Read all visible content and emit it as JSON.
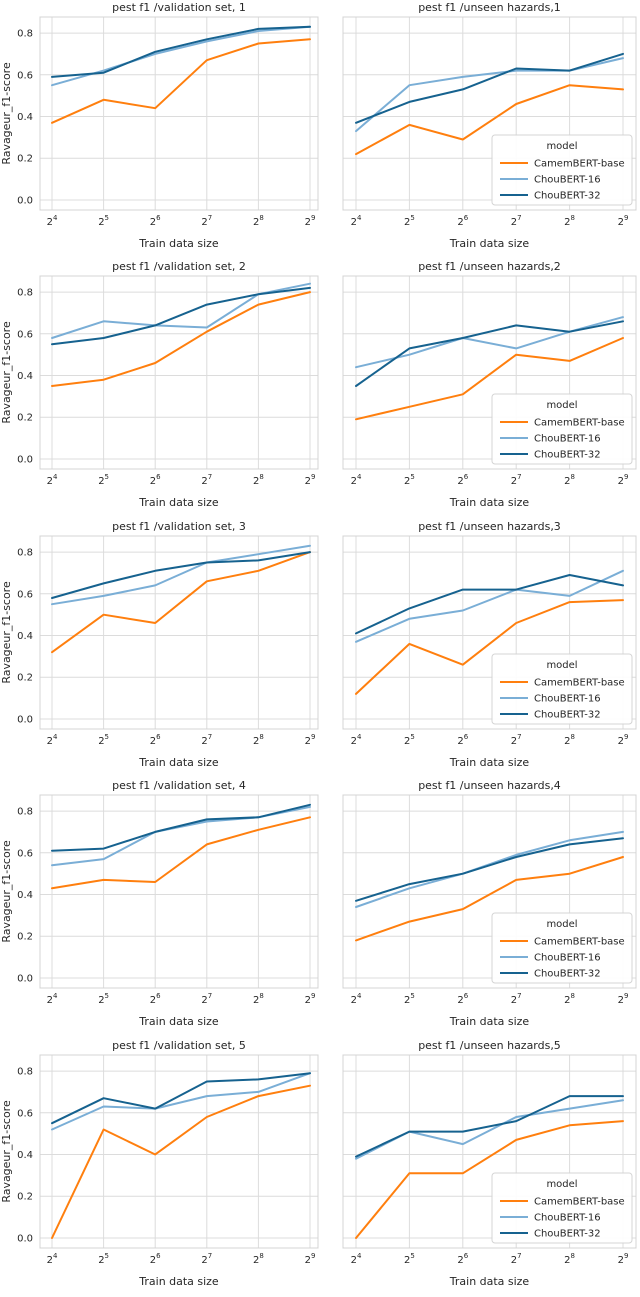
{
  "figure": {
    "background": "#ffffff",
    "grid_color": "#dcdcdc",
    "spine_color": "#d4d4d4",
    "text_color": "#262626"
  },
  "axes": {
    "xlabel": "Train data size",
    "ylabel": "Ravageur_f1-score",
    "x_tick_base": "2",
    "x_tick_exponents": [
      "4",
      "5",
      "6",
      "7",
      "8",
      "9"
    ],
    "y_tick_labels": [
      "0.0",
      "0.2",
      "0.4",
      "0.6",
      "0.8"
    ],
    "y_tick_values": [
      0.0,
      0.2,
      0.4,
      0.6,
      0.8
    ],
    "ylim": [
      -0.048,
      0.877
    ]
  },
  "legend": {
    "title": "model",
    "entries": [
      "CamemBERT-base",
      "ChouBERT-16",
      "ChouBERT-32"
    ]
  },
  "series_meta": [
    {
      "name": "CamemBERT-base",
      "color": "#ff7f0e"
    },
    {
      "name": "ChouBERT-16",
      "color": "#7aaed6"
    },
    {
      "name": "ChouBERT-32",
      "color": "#16628f"
    }
  ],
  "chart_data": [
    {
      "type": "line",
      "title": "pest f1 /validation set, 1",
      "x_labels": [
        "2^4",
        "2^5",
        "2^6",
        "2^7",
        "2^8",
        "2^9"
      ],
      "show_y_axis": true,
      "show_legend": false,
      "series": [
        {
          "name": "CamemBERT-base",
          "values": [
            0.37,
            0.48,
            0.44,
            0.67,
            0.75,
            0.77
          ]
        },
        {
          "name": "ChouBERT-16",
          "values": [
            0.55,
            0.62,
            0.7,
            0.76,
            0.81,
            0.83
          ]
        },
        {
          "name": "ChouBERT-32",
          "values": [
            0.59,
            0.61,
            0.71,
            0.77,
            0.82,
            0.83
          ]
        }
      ]
    },
    {
      "type": "line",
      "title": "pest f1 /unseen hazards,1",
      "x_labels": [
        "2^4",
        "2^5",
        "2^6",
        "2^7",
        "2^8",
        "2^9"
      ],
      "show_y_axis": false,
      "show_legend": true,
      "series": [
        {
          "name": "CamemBERT-base",
          "values": [
            0.22,
            0.36,
            0.29,
            0.46,
            0.55,
            0.53
          ]
        },
        {
          "name": "ChouBERT-16",
          "values": [
            0.33,
            0.55,
            0.59,
            0.62,
            0.62,
            0.68
          ]
        },
        {
          "name": "ChouBERT-32",
          "values": [
            0.37,
            0.47,
            0.53,
            0.63,
            0.62,
            0.7
          ]
        }
      ]
    },
    {
      "type": "line",
      "title": "pest f1 /validation set, 2",
      "x_labels": [
        "2^4",
        "2^5",
        "2^6",
        "2^7",
        "2^8",
        "2^9"
      ],
      "show_y_axis": true,
      "show_legend": false,
      "series": [
        {
          "name": "CamemBERT-base",
          "values": [
            0.35,
            0.38,
            0.46,
            0.61,
            0.74,
            0.8
          ]
        },
        {
          "name": "ChouBERT-16",
          "values": [
            0.58,
            0.66,
            0.64,
            0.63,
            0.79,
            0.84
          ]
        },
        {
          "name": "ChouBERT-32",
          "values": [
            0.55,
            0.58,
            0.64,
            0.74,
            0.79,
            0.82
          ]
        }
      ]
    },
    {
      "type": "line",
      "title": "pest f1 /unseen hazards,2",
      "x_labels": [
        "2^4",
        "2^5",
        "2^6",
        "2^7",
        "2^8",
        "2^9"
      ],
      "show_y_axis": false,
      "show_legend": true,
      "series": [
        {
          "name": "CamemBERT-base",
          "values": [
            0.19,
            0.25,
            0.31,
            0.5,
            0.47,
            0.58
          ]
        },
        {
          "name": "ChouBERT-16",
          "values": [
            0.44,
            0.5,
            0.58,
            0.53,
            0.61,
            0.68
          ]
        },
        {
          "name": "ChouBERT-32",
          "values": [
            0.35,
            0.53,
            0.58,
            0.64,
            0.61,
            0.66
          ]
        }
      ]
    },
    {
      "type": "line",
      "title": "pest f1 /validation set, 3",
      "x_labels": [
        "2^4",
        "2^5",
        "2^6",
        "2^7",
        "2^8",
        "2^9"
      ],
      "show_y_axis": true,
      "show_legend": false,
      "series": [
        {
          "name": "CamemBERT-base",
          "values": [
            0.32,
            0.5,
            0.46,
            0.66,
            0.71,
            0.8
          ]
        },
        {
          "name": "ChouBERT-16",
          "values": [
            0.55,
            0.59,
            0.64,
            0.75,
            0.79,
            0.83
          ]
        },
        {
          "name": "ChouBERT-32",
          "values": [
            0.58,
            0.65,
            0.71,
            0.75,
            0.76,
            0.8
          ]
        }
      ]
    },
    {
      "type": "line",
      "title": "pest f1 /unseen hazards,3",
      "x_labels": [
        "2^4",
        "2^5",
        "2^6",
        "2^7",
        "2^8",
        "2^9"
      ],
      "show_y_axis": false,
      "show_legend": true,
      "series": [
        {
          "name": "CamemBERT-base",
          "values": [
            0.12,
            0.36,
            0.26,
            0.46,
            0.56,
            0.57
          ]
        },
        {
          "name": "ChouBERT-16",
          "values": [
            0.37,
            0.48,
            0.52,
            0.62,
            0.59,
            0.71
          ]
        },
        {
          "name": "ChouBERT-32",
          "values": [
            0.41,
            0.53,
            0.62,
            0.62,
            0.69,
            0.64
          ]
        }
      ]
    },
    {
      "type": "line",
      "title": "pest f1 /validation set, 4",
      "x_labels": [
        "2^4",
        "2^5",
        "2^6",
        "2^7",
        "2^8",
        "2^9"
      ],
      "show_y_axis": true,
      "show_legend": false,
      "series": [
        {
          "name": "CamemBERT-base",
          "values": [
            0.43,
            0.47,
            0.46,
            0.64,
            0.71,
            0.77
          ]
        },
        {
          "name": "ChouBERT-16",
          "values": [
            0.54,
            0.57,
            0.7,
            0.75,
            0.77,
            0.82
          ]
        },
        {
          "name": "ChouBERT-32",
          "values": [
            0.61,
            0.62,
            0.7,
            0.76,
            0.77,
            0.83
          ]
        }
      ]
    },
    {
      "type": "line",
      "title": "pest f1 /unseen hazards,4",
      "x_labels": [
        "2^4",
        "2^5",
        "2^6",
        "2^7",
        "2^8",
        "2^9"
      ],
      "show_y_axis": false,
      "show_legend": true,
      "series": [
        {
          "name": "CamemBERT-base",
          "values": [
            0.18,
            0.27,
            0.33,
            0.47,
            0.5,
            0.58
          ]
        },
        {
          "name": "ChouBERT-16",
          "values": [
            0.34,
            0.43,
            0.5,
            0.59,
            0.66,
            0.7
          ]
        },
        {
          "name": "ChouBERT-32",
          "values": [
            0.37,
            0.45,
            0.5,
            0.58,
            0.64,
            0.67
          ]
        }
      ]
    },
    {
      "type": "line",
      "title": "pest f1 /validation set, 5",
      "x_labels": [
        "2^4",
        "2^5",
        "2^6",
        "2^7",
        "2^8",
        "2^9"
      ],
      "show_y_axis": true,
      "show_legend": false,
      "series": [
        {
          "name": "CamemBERT-base",
          "values": [
            0.0,
            0.52,
            0.4,
            0.58,
            0.68,
            0.73
          ]
        },
        {
          "name": "ChouBERT-16",
          "values": [
            0.52,
            0.63,
            0.62,
            0.68,
            0.7,
            0.79
          ]
        },
        {
          "name": "ChouBERT-32",
          "values": [
            0.55,
            0.67,
            0.62,
            0.75,
            0.76,
            0.79
          ]
        }
      ]
    },
    {
      "type": "line",
      "title": "pest f1 /unseen hazards,5",
      "x_labels": [
        "2^4",
        "2^5",
        "2^6",
        "2^7",
        "2^8",
        "2^9"
      ],
      "show_y_axis": false,
      "show_legend": true,
      "series": [
        {
          "name": "CamemBERT-base",
          "values": [
            0.0,
            0.31,
            0.31,
            0.47,
            0.54,
            0.56
          ]
        },
        {
          "name": "ChouBERT-16",
          "values": [
            0.38,
            0.51,
            0.45,
            0.58,
            0.62,
            0.66
          ]
        },
        {
          "name": "ChouBERT-32",
          "values": [
            0.39,
            0.51,
            0.51,
            0.56,
            0.68,
            0.68
          ]
        }
      ]
    }
  ]
}
